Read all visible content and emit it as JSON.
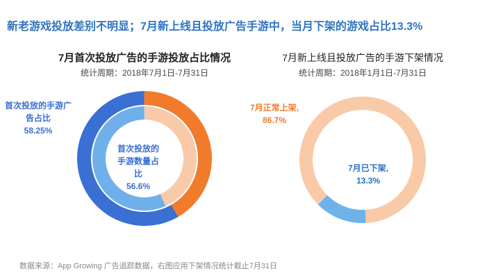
{
  "title": "新老游戏投放差别不明显；7月新上线且投放广告手游中，当月下架的游戏占比13.3%",
  "source": "数据来源：App Growing 广告追踪数据，右图应用下架情况统计截止7月31日",
  "chart_data": [
    {
      "type": "donut",
      "title": "7月首次投放广告的手游投放占比情况",
      "subtitle": "统计周期：2018年7月1日-7月31日",
      "rings": [
        {
          "slices": [
            {
              "name": "首次投放的手游广告占比",
              "value": 58.25,
              "value_label": "58.25%",
              "color": "#3a6fd3"
            },
            {
              "value": 41.75,
              "color": "#f07c2b"
            }
          ]
        },
        {
          "slices": [
            {
              "name": "首次投放的手游数量占比",
              "value": 56.6,
              "value_label": "56.6%",
              "color": "#6fb0ea"
            },
            {
              "value": 43.4,
              "color": "#f9caa9"
            }
          ]
        }
      ]
    },
    {
      "type": "donut",
      "title": "7月新上线且投放广告的手游下架情况",
      "subtitle": "统计周期：2018年1月1日-7月31日",
      "rings": [
        {
          "slices": [
            {
              "name": "7月正常上架,",
              "value": 86.7,
              "value_label": "86.7%",
              "color": "#f9caa7"
            },
            {
              "name": "7月已下架,",
              "value": 13.3,
              "value_label": "13.3%",
              "color": "#6fb2ea"
            }
          ]
        }
      ]
    }
  ]
}
